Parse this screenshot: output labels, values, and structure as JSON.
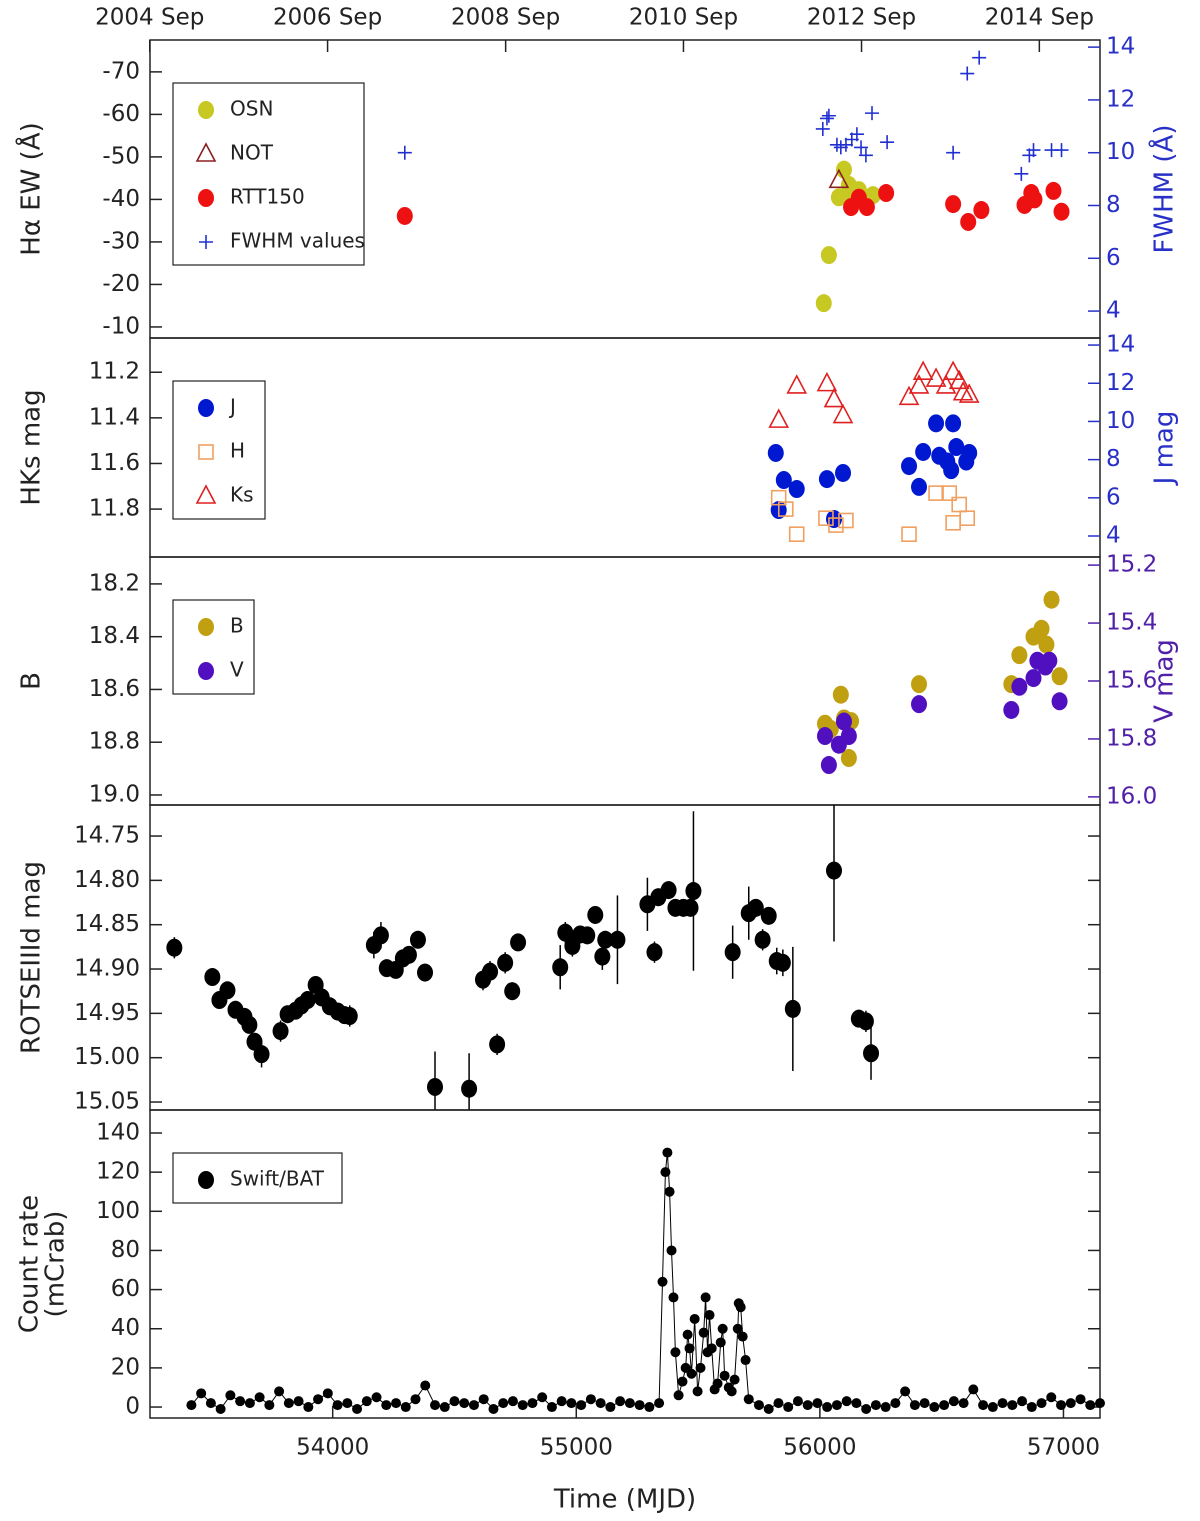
{
  "chart_data": [
    {
      "type": "scatter",
      "ylabel": "Hα EW (Å)",
      "y2label": "FWHM (Å)",
      "y2color": "#2830c8",
      "xlim": [
        53250,
        57150
      ],
      "x2ticks": [
        {
          "value": 53249,
          "label": "2004 Sep"
        },
        {
          "value": 53979,
          "label": "2006 Sep"
        },
        {
          "value": 54710,
          "label": "2008 Sep"
        },
        {
          "value": 55440,
          "label": "2010 Sep"
        },
        {
          "value": 56171,
          "label": "2012 Sep"
        },
        {
          "value": 56901,
          "label": "2014 Sep"
        }
      ],
      "ylim": [
        -7.4,
        -77.5
      ],
      "yticks": [
        -70,
        -60,
        -50,
        -40,
        -30,
        -20,
        -10
      ],
      "y2lim": [
        2.98,
        14.27
      ],
      "y2ticks": [
        4,
        6,
        8,
        10,
        12,
        14
      ],
      "legend_loc": "upper left",
      "series": [
        {
          "name": "OSN",
          "color": "#c8c822",
          "marker": "circle",
          "x": [
            56016,
            56037,
            56078,
            56099,
            56119,
            56140,
            56160,
            56218
          ],
          "values": [
            -15.6,
            -26.9,
            -40.5,
            -47,
            -43.4,
            -41,
            -42.2,
            -41
          ]
        },
        {
          "name": "NOT",
          "color": "#8b2020",
          "marker": "triangle",
          "x": [
            56078
          ],
          "values": [
            -44.5
          ]
        },
        {
          "name": "RTT150",
          "color": "#ee1111",
          "marker": "circle",
          "x": [
            54296,
            56128,
            56160,
            56193,
            56272,
            56547,
            56609,
            56663,
            56840,
            56868,
            56881,
            56959,
            56992
          ],
          "values": [
            -36.1,
            -38.2,
            -40.4,
            -38.2,
            -41.5,
            -38.9,
            -34.7,
            -37.5,
            -38.7,
            -41.5,
            -40,
            -42,
            -37.1
          ]
        },
        {
          "name": "FWHM values",
          "color": "#2030d0",
          "marker": "plus",
          "axis": "y2",
          "x": [
            54296,
            56012,
            56029,
            56037,
            56070,
            56086,
            56107,
            56131,
            56152,
            56169,
            56189,
            56214,
            56276,
            56547,
            56605,
            56654,
            56827,
            56860,
            56877,
            56951,
            56992
          ],
          "values": [
            10,
            10.9,
            11.3,
            11.4,
            10.3,
            10.2,
            10.3,
            10.5,
            10.7,
            10.2,
            9.9,
            11.5,
            10.4,
            10,
            13,
            13.6,
            9.2,
            9.9,
            10.1,
            10.1,
            10.1
          ]
        }
      ]
    },
    {
      "type": "scatter",
      "ylabel": "HKs mag",
      "y2label": "J mag",
      "y2color": "#2830c8",
      "xlim": [
        53250,
        57150
      ],
      "ylim": [
        12.01,
        11.05
      ],
      "yticks": [
        11.2,
        11.4,
        11.6,
        11.8
      ],
      "y2lim": [
        2.9,
        14.37
      ],
      "y2ticks": [
        4,
        6,
        8,
        10,
        12,
        14
      ],
      "legend_loc": "upper left",
      "series": [
        {
          "name": "J",
          "color": "#0018d0",
          "marker": "circle",
          "axis": "y2",
          "x": [
            55819,
            55831,
            55852,
            55905,
            56029,
            56058,
            56095,
            56366,
            56407,
            56424,
            56477,
            56490,
            56523,
            56539,
            56547,
            56560,
            56601,
            56613
          ],
          "values": [
            8.35,
            5.36,
            6.93,
            6.46,
            6.98,
            4.89,
            7.3,
            7.66,
            6.57,
            8.4,
            9.9,
            8.2,
            7.9,
            7.45,
            9.9,
            8.66,
            7.9,
            8.35
          ]
        },
        {
          "name": "H",
          "color": "#f0a060",
          "marker": "square",
          "x": [
            55831,
            55860,
            55905,
            56025,
            56066,
            56107,
            56366,
            56477,
            56531,
            56547,
            56572,
            56605
          ],
          "values": [
            11.75,
            11.8,
            11.91,
            11.84,
            11.87,
            11.85,
            11.91,
            11.73,
            11.73,
            11.86,
            11.78,
            11.84
          ]
        },
        {
          "name": "Ks",
          "color": "#e02020",
          "marker": "triangle",
          "x": [
            55831,
            55905,
            56029,
            56058,
            56095,
            56366,
            56407,
            56424,
            56477,
            56518,
            56547,
            56572,
            56588,
            56613
          ],
          "values": [
            11.41,
            11.26,
            11.25,
            11.32,
            11.39,
            11.31,
            11.26,
            11.2,
            11.23,
            11.26,
            11.2,
            11.24,
            11.29,
            11.3
          ]
        }
      ]
    },
    {
      "type": "scatter",
      "ylabel": "B",
      "y2label": "V mag",
      "y2color": "#5020a8",
      "xlim": [
        53250,
        57150
      ],
      "ylim": [
        19.038,
        18.098
      ],
      "yticks": [
        18.2,
        18.4,
        18.6,
        18.8,
        {
          "value": 19,
          "label": "19.0"
        }
      ],
      "y2lim": [
        16.028,
        15.172
      ],
      "y2ticks": [
        15.2,
        15.4,
        15.6,
        15.8,
        {
          "value": 16,
          "label": "16.0"
        }
      ],
      "legend_loc": "upper left",
      "series": [
        {
          "name": "B",
          "color": "#c0a010",
          "marker": "circle",
          "x": [
            56021,
            56045,
            56086,
            56099,
            56128,
            56119,
            56407,
            56786,
            56819,
            56877,
            56910,
            56930,
            56951,
            56984
          ],
          "values": [
            18.73,
            18.75,
            18.62,
            18.71,
            18.72,
            18.86,
            18.58,
            18.58,
            18.47,
            18.4,
            18.37,
            18.43,
            18.26,
            18.55
          ]
        },
        {
          "name": "V",
          "color": "#5010c0",
          "marker": "circle",
          "axis": "y2",
          "x": [
            56021,
            56037,
            56078,
            56099,
            56119,
            56407,
            56786,
            56819,
            56877,
            56893,
            56926,
            56942,
            56984
          ],
          "values": [
            15.79,
            15.89,
            15.82,
            15.74,
            15.79,
            15.68,
            15.7,
            15.62,
            15.59,
            15.53,
            15.55,
            15.53,
            15.67
          ]
        }
      ]
    },
    {
      "type": "scatter",
      "ylabel": "ROTSEIIId mag",
      "xlim": [
        53250,
        57150
      ],
      "ylim": [
        15.059,
        14.715
      ],
      "yticks": [
        14.75,
        {
          "value": 14.8,
          "label": "14.80"
        },
        14.85,
        {
          "value": 14.9,
          "label": "14.90"
        },
        14.95,
        {
          "value": 15,
          "label": "15.00"
        },
        15.05
      ],
      "series": [
        {
          "color": "#000000",
          "marker": "circle",
          "x": [
            53350,
            53506,
            53535,
            53568,
            53601,
            53638,
            53658,
            53679,
            53708,
            53786,
            53815,
            53848,
            53872,
            53897,
            53930,
            53955,
            53988,
            54021,
            54049,
            54070,
            54169,
            54198,
            54222,
            54259,
            54288,
            54313,
            54350,
            54379,
            54420,
            54560,
            54617,
            54646,
            54675,
            54708,
            54737,
            54761,
            54934,
            54955,
            54984,
            55016,
            55045,
            55078,
            55107,
            55119,
            55169,
            55292,
            55321,
            55337,
            55379,
            55407,
            55440,
            55469,
            55481,
            55642,
            55708,
            55737,
            55765,
            55790,
            55823,
            55848,
            55889,
            56058,
            56160,
            56189,
            56210
          ],
          "values": [
            14.876,
            14.909,
            14.935,
            14.924,
            14.946,
            14.954,
            14.963,
            14.982,
            14.996,
            14.97,
            14.951,
            14.947,
            14.941,
            14.935,
            14.918,
            14.932,
            14.942,
            14.948,
            14.952,
            14.953,
            14.873,
            14.862,
            14.899,
            14.901,
            14.888,
            14.884,
            14.867,
            14.904,
            15.033,
            15.035,
            14.912,
            14.903,
            14.985,
            14.893,
            14.925,
            14.87,
            14.898,
            14.859,
            14.874,
            14.861,
            14.862,
            14.839,
            14.886,
            14.867,
            14.867,
            14.827,
            14.881,
            14.819,
            14.811,
            14.831,
            14.831,
            14.831,
            14.812,
            14.881,
            14.837,
            14.831,
            14.867,
            14.84,
            14.891,
            14.893,
            14.945,
            14.789,
            14.956,
            14.959,
            14.995
          ],
          "errors": [
            0.012,
            0.008,
            0.008,
            0.008,
            0.008,
            0.008,
            0.008,
            0.01,
            0.015,
            0.012,
            0.01,
            0.008,
            0.008,
            0.008,
            0.008,
            0.008,
            0.01,
            0.01,
            0.01,
            0.012,
            0.015,
            0.015,
            0.008,
            0.008,
            0.01,
            0.01,
            0.008,
            0.01,
            0.04,
            0.04,
            0.012,
            0.012,
            0.012,
            0.012,
            0.01,
            0.008,
            0.025,
            0.012,
            0.012,
            0.01,
            0.01,
            0.01,
            0.015,
            0.01,
            0.05,
            0.03,
            0.012,
            0.01,
            0.01,
            0.01,
            0.01,
            0.01,
            0.09,
            0.03,
            0.03,
            0.01,
            0.012,
            0.01,
            0.015,
            0.015,
            0.07,
            0.08,
            0.01,
            0.012,
            0.03
          ]
        }
      ]
    },
    {
      "type": "scatter",
      "ylabel": [
        "Count rate",
        "(mCrab)"
      ],
      "xlabel": "Time (MJD)",
      "xlim": [
        53250,
        57150
      ],
      "xticks": [
        54000,
        55000,
        56000,
        57000
      ],
      "ylim": [
        -5.6,
        151.75
      ],
      "yticks": [
        0,
        20,
        40,
        60,
        80,
        100,
        120,
        140
      ],
      "legend_loc": "upper left",
      "series": [
        {
          "name": "Swift/BAT",
          "color": "#000000",
          "marker": "dot",
          "line": true,
          "x": [
            53420,
            53460,
            53500,
            53540,
            53580,
            53620,
            53660,
            53700,
            53740,
            53780,
            53820,
            53860,
            53900,
            53940,
            53980,
            54020,
            54060,
            54100,
            54140,
            54180,
            54220,
            54260,
            54300,
            54340,
            54380,
            54420,
            54460,
            54500,
            54540,
            54580,
            54620,
            54660,
            54700,
            54740,
            54780,
            54820,
            54860,
            54900,
            54940,
            54980,
            55020,
            55060,
            55100,
            55140,
            55180,
            55220,
            55260,
            55300,
            55340,
            55354,
            55366,
            55374,
            55383,
            55391,
            55399,
            55407,
            55420,
            55436,
            55449,
            55457,
            55465,
            55473,
            55486,
            55498,
            55510,
            55523,
            55531,
            55539,
            55547,
            55556,
            55568,
            55580,
            55593,
            55601,
            55609,
            55626,
            55638,
            55650,
            55663,
            55667,
            55675,
            55683,
            55695,
            55708,
            55750,
            55790,
            55830,
            55870,
            55910,
            55950,
            55990,
            56030,
            56070,
            56110,
            56150,
            56190,
            56230,
            56270,
            56310,
            56350,
            56390,
            56430,
            56470,
            56510,
            56550,
            56590,
            56630,
            56670,
            56710,
            56750,
            56790,
            56830,
            56870,
            56910,
            56950,
            56990,
            57030,
            57070,
            57110,
            57150
          ],
          "values": [
            1,
            7,
            2,
            -1,
            6,
            3,
            2,
            5,
            1,
            8,
            2,
            3,
            0,
            4,
            7,
            1,
            2,
            -1,
            3,
            5,
            1,
            2,
            0,
            4,
            11,
            1,
            0,
            3,
            2,
            1,
            4,
            -1,
            2,
            3,
            1,
            2,
            5,
            0,
            3,
            2,
            1,
            4,
            2,
            0,
            3,
            2,
            1,
            0,
            2,
            64,
            120,
            130,
            110,
            80,
            56,
            28,
            6,
            13,
            20,
            37,
            30,
            17,
            45,
            8,
            20,
            38,
            56,
            28,
            47,
            30,
            9,
            12,
            33,
            40,
            16,
            10,
            8,
            14,
            40,
            53,
            51,
            36,
            24,
            4,
            1,
            -1,
            2,
            0,
            3,
            1,
            2,
            0,
            1,
            3,
            2,
            -1,
            1,
            0,
            2,
            8,
            1,
            2,
            0,
            1,
            3,
            2,
            9,
            1,
            0,
            2,
            1,
            3,
            0,
            2,
            5,
            1,
            2,
            4,
            1,
            2
          ]
        }
      ]
    }
  ]
}
